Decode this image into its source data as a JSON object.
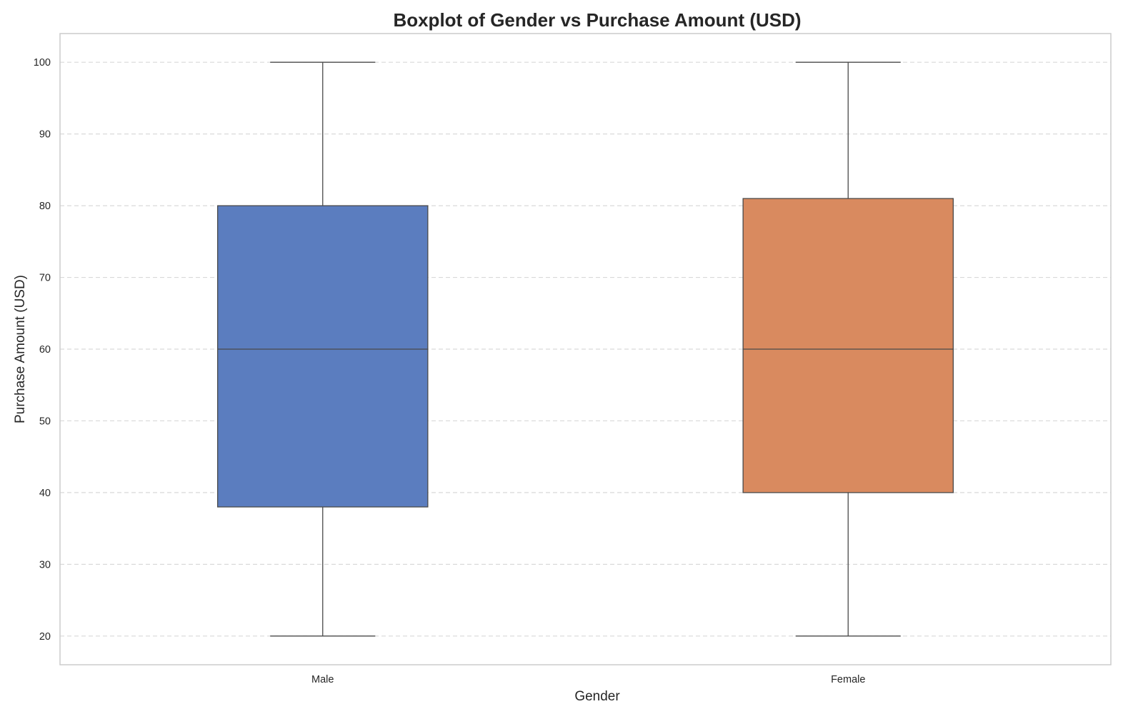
{
  "chart_data": {
    "type": "box",
    "title": "Boxplot of Gender vs Purchase Amount (USD)",
    "xlabel": "Gender",
    "ylabel": "Purchase Amount (USD)",
    "ylim": [
      16,
      104
    ],
    "yticks": [
      20,
      30,
      40,
      50,
      60,
      70,
      80,
      90,
      100
    ],
    "grid": true,
    "categories": [
      "Male",
      "Female"
    ],
    "boxes": [
      {
        "name": "Male",
        "min": 20,
        "q1": 38,
        "median": 60,
        "q3": 80,
        "max": 100,
        "color": "#5b7dbf"
      },
      {
        "name": "Female",
        "min": 20,
        "q1": 40,
        "median": 60,
        "q3": 81,
        "max": 100,
        "color": "#d98a5f"
      }
    ]
  }
}
